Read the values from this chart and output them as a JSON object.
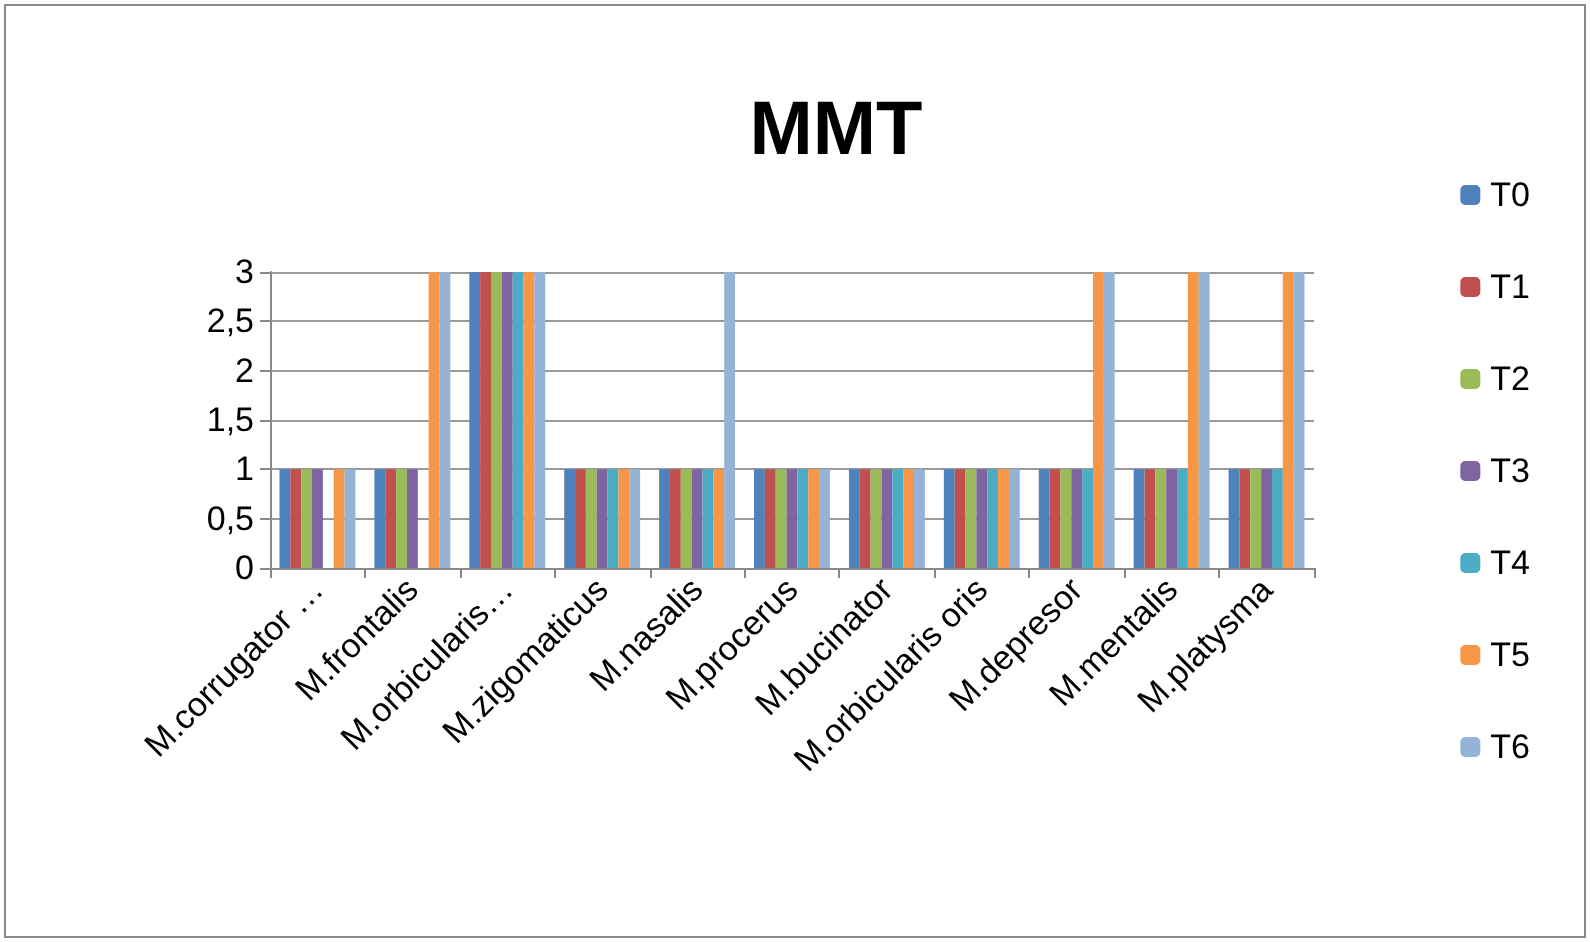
{
  "chart_data": {
    "type": "bar",
    "title": "MMT",
    "categories": [
      "M.corrugator …",
      "M.frontalis",
      "M.orbicularis…",
      "M.zigomaticus",
      "M.nasalis",
      "M.procerus",
      "M.bucinator",
      "M.orbicularis oris",
      "M.depresor",
      "M.mentalis",
      "M.platysma"
    ],
    "series": [
      {
        "name": "T0",
        "color": "#4f81bd",
        "values": [
          1,
          1,
          3,
          1,
          1,
          1,
          1,
          1,
          1,
          1,
          1
        ]
      },
      {
        "name": "T1",
        "color": "#c0504d",
        "values": [
          1,
          1,
          3,
          1,
          1,
          1,
          1,
          1,
          1,
          1,
          1
        ]
      },
      {
        "name": "T2",
        "color": "#9bbb59",
        "values": [
          1,
          1,
          3,
          1,
          1,
          1,
          1,
          1,
          1,
          1,
          1
        ]
      },
      {
        "name": "T3",
        "color": "#8064a2",
        "values": [
          1,
          1,
          3,
          1,
          1,
          1,
          1,
          1,
          1,
          1,
          1
        ]
      },
      {
        "name": "T4",
        "color": "#4bacc6",
        "values": [
          null,
          null,
          3,
          1,
          1,
          1,
          1,
          1,
          1,
          1,
          1
        ]
      },
      {
        "name": "T5",
        "color": "#f79646",
        "values": [
          1,
          3,
          3,
          1,
          1,
          1,
          1,
          1,
          3,
          3,
          3
        ]
      },
      {
        "name": "T6",
        "color": "#95b3d7",
        "values": [
          1,
          3,
          3,
          1,
          3,
          1,
          1,
          1,
          3,
          3,
          3
        ]
      }
    ],
    "ylim": [
      0,
      3
    ],
    "yticks": [
      0,
      {
        "value": 0.5,
        "label": "0,5"
      },
      1,
      {
        "value": 1.5,
        "label": "1,5"
      },
      2,
      {
        "value": 2.5,
        "label": "2,5"
      },
      3
    ],
    "grid": "y",
    "legend": "right"
  }
}
